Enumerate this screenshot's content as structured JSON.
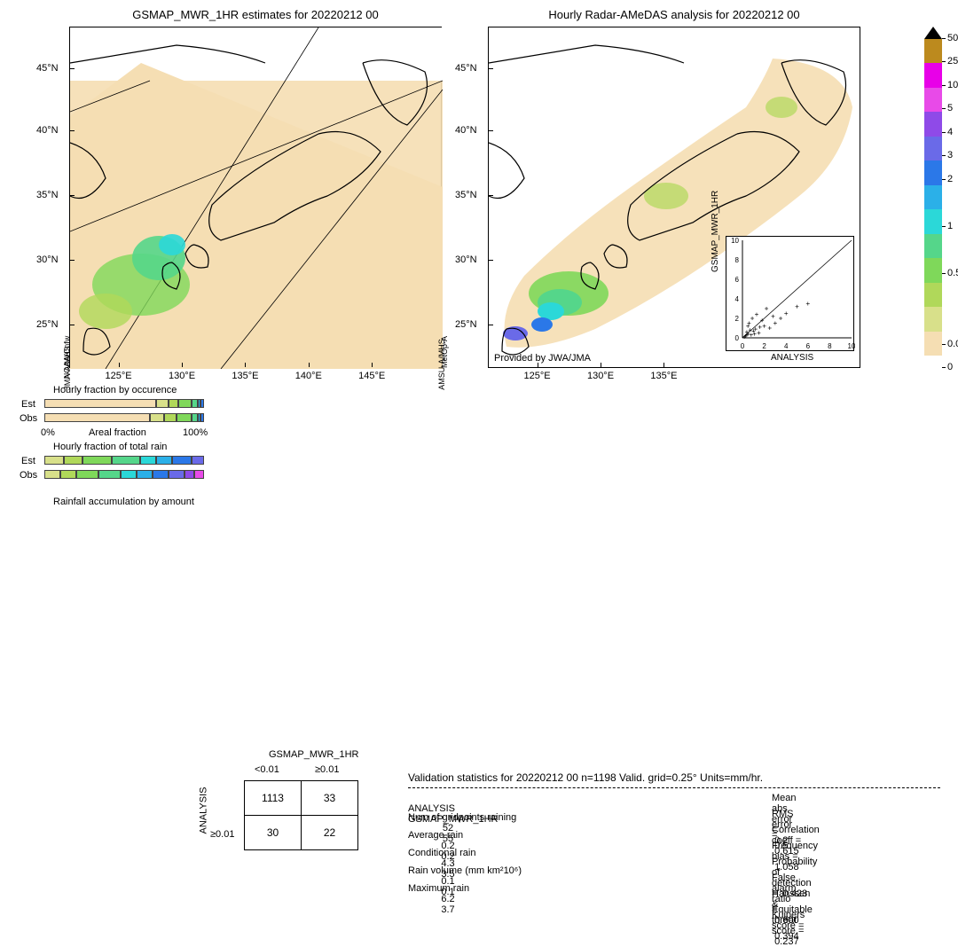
{
  "maps": {
    "left_title": "GSMAP_MWR_1HR estimates for 20220212 00",
    "right_title": "Hourly Radar-AMeDAS analysis for 20220212 00",
    "lat_ticks": [
      {
        "v": "45°N",
        "p": 0.12
      },
      {
        "v": "40°N",
        "p": 0.3
      },
      {
        "v": "35°N",
        "p": 0.49
      },
      {
        "v": "30°N",
        "p": 0.68
      },
      {
        "v": "25°N",
        "p": 0.87
      }
    ],
    "lon_ticks_left": [
      {
        "v": "125°E",
        "p": 0.13
      },
      {
        "v": "130°E",
        "p": 0.3
      },
      {
        "v": "135°E",
        "p": 0.47
      },
      {
        "v": "140°E",
        "p": 0.64
      },
      {
        "v": "145°E",
        "p": 0.81
      }
    ],
    "lon_ticks_right": [
      {
        "v": "125°E",
        "p": 0.13
      },
      {
        "v": "130°E",
        "p": 0.3
      },
      {
        "v": "135°E",
        "p": 0.47
      }
    ],
    "provider": "Provided by JWA/JMA",
    "side_bl": "NOAA/Cnfw",
    "side_bl2": "JMA-A/MHS",
    "side_br": "MetOp-A",
    "side_br2": "AMSU-A/MHS"
  },
  "colorbar": {
    "colors": [
      "#000000",
      "#bc8a1e",
      "#e800e8",
      "#e84ae8",
      "#8f4ae8",
      "#6a6ae8",
      "#2b78e8",
      "#2bb0e8",
      "#2bd8d8",
      "#55d68a",
      "#7fd85a",
      "#b0d85a",
      "#d8e08a",
      "#f5deb3",
      "#ffffff"
    ],
    "labels": [
      {
        "v": "50",
        "p": 0.033
      },
      {
        "v": "25",
        "p": 0.102
      },
      {
        "v": "10",
        "p": 0.171
      },
      {
        "v": "5",
        "p": 0.24
      },
      {
        "v": "4",
        "p": 0.308
      },
      {
        "v": "3",
        "p": 0.377
      },
      {
        "v": "2",
        "p": 0.446
      },
      {
        "v": "1",
        "p": 0.584
      },
      {
        "v": "0.5",
        "p": 0.722
      },
      {
        "v": "0.01",
        "p": 0.929
      },
      {
        "v": "0",
        "p": 0.998
      }
    ]
  },
  "fractions": {
    "occ_title": "Hourly fraction by occurence",
    "tot_title": "Hourly fraction of total rain",
    "acc_title": "Rainfall accumulation by amount",
    "est": "Est",
    "obs": "Obs",
    "axis_lo": "0%",
    "axis_mid": "Areal fraction",
    "axis_hi": "100%",
    "occ_est": [
      {
        "c": "#f5deb3",
        "w": 0.7
      },
      {
        "c": "#d8e08a",
        "w": 0.08
      },
      {
        "c": "#b0d85a",
        "w": 0.06
      },
      {
        "c": "#7fd85a",
        "w": 0.08
      },
      {
        "c": "#55d68a",
        "w": 0.04
      },
      {
        "c": "#2bb0e8",
        "w": 0.02
      },
      {
        "c": "#2b78e8",
        "w": 0.02
      }
    ],
    "occ_obs": [
      {
        "c": "#f5deb3",
        "w": 0.66
      },
      {
        "c": "#d8e08a",
        "w": 0.09
      },
      {
        "c": "#b0d85a",
        "w": 0.08
      },
      {
        "c": "#7fd85a",
        "w": 0.09
      },
      {
        "c": "#55d68a",
        "w": 0.04
      },
      {
        "c": "#2bb0e8",
        "w": 0.02
      },
      {
        "c": "#2b78e8",
        "w": 0.02
      }
    ],
    "tot_est": [
      {
        "c": "#d8e08a",
        "w": 0.12
      },
      {
        "c": "#b0d85a",
        "w": 0.12
      },
      {
        "c": "#7fd85a",
        "w": 0.18
      },
      {
        "c": "#55d68a",
        "w": 0.18
      },
      {
        "c": "#2bd8d8",
        "w": 0.1
      },
      {
        "c": "#2bb0e8",
        "w": 0.1
      },
      {
        "c": "#2b78e8",
        "w": 0.12
      },
      {
        "c": "#6a6ae8",
        "w": 0.08
      }
    ],
    "tot_obs": [
      {
        "c": "#d8e08a",
        "w": 0.1
      },
      {
        "c": "#b0d85a",
        "w": 0.1
      },
      {
        "c": "#7fd85a",
        "w": 0.14
      },
      {
        "c": "#55d68a",
        "w": 0.14
      },
      {
        "c": "#2bd8d8",
        "w": 0.1
      },
      {
        "c": "#2bb0e8",
        "w": 0.1
      },
      {
        "c": "#2b78e8",
        "w": 0.1
      },
      {
        "c": "#6a6ae8",
        "w": 0.1
      },
      {
        "c": "#8f4ae8",
        "w": 0.06
      },
      {
        "c": "#e84ae8",
        "w": 0.06
      }
    ]
  },
  "contingency": {
    "col_header": "GSMAP_MWR_1HR",
    "row_header": "ANALYSIS",
    "col1": "<0.01",
    "col2": "≥0.01",
    "row2": "≥0.01",
    "cells": [
      "1113",
      "33",
      "30",
      "22"
    ]
  },
  "stats": {
    "title": "Validation statistics for 20220212 00  n=1198 Valid. grid=0.25°  Units=mm/hr.",
    "col1": "ANALYSIS",
    "col2": "GSMAP_MWR_1HR",
    "rows": [
      {
        "label": "Num of gridpoints raining",
        "a": "52",
        "b": "55"
      },
      {
        "label": "Average rain",
        "a": "0.2",
        "b": "0.2"
      },
      {
        "label": "Conditional rain",
        "a": "4.3",
        "b": "3.5"
      },
      {
        "label": "Rain volume (mm km²10⁶)",
        "a": "0.1",
        "b": "0.1"
      },
      {
        "label": "Maximum rain",
        "a": "6.2",
        "b": "3.7"
      }
    ],
    "pairs": [
      {
        "label": "Mean abs error =",
        "v": "0.2"
      },
      {
        "label": "RMS error =",
        "v": "0.5"
      },
      {
        "label": "Correlation coeff =",
        "v": "0.615"
      },
      {
        "label": "Frequency bias =",
        "v": "1.058"
      },
      {
        "label": "Probability of detection =",
        "v": "0.423"
      },
      {
        "label": "False alarm ratio =",
        "v": "0.600"
      },
      {
        "label": "Hanssen & Kuipers score =",
        "v": "0.394"
      },
      {
        "label": "Equitable threat score =",
        "v": "0.237"
      }
    ]
  },
  "inset": {
    "xlabel": "ANALYSIS",
    "ylabel": "GSMAP_MWR_1HR",
    "ticks": [
      "0",
      "2",
      "4",
      "6",
      "8",
      "10"
    ],
    "points": [
      [
        0.3,
        0.2
      ],
      [
        0.5,
        0.4
      ],
      [
        0.8,
        0.3
      ],
      [
        0.4,
        0.6
      ],
      [
        1.2,
        0.9
      ],
      [
        1.5,
        0.5
      ],
      [
        2.0,
        1.2
      ],
      [
        0.6,
        1.5
      ],
      [
        1.8,
        1.8
      ],
      [
        2.5,
        1.0
      ],
      [
        0.9,
        2.0
      ],
      [
        3.0,
        1.5
      ],
      [
        1.3,
        2.4
      ],
      [
        3.5,
        2.0
      ],
      [
        0.7,
        0.8
      ],
      [
        4.0,
        2.5
      ],
      [
        2.2,
        3.0
      ],
      [
        5.0,
        3.2
      ],
      [
        6.0,
        3.5
      ],
      [
        0.2,
        0.1
      ],
      [
        0.4,
        0.3
      ],
      [
        1.0,
        0.7
      ],
      [
        1.6,
        1.1
      ],
      [
        2.8,
        2.2
      ],
      [
        0.5,
        1.2
      ],
      [
        1.1,
        0.4
      ]
    ]
  }
}
